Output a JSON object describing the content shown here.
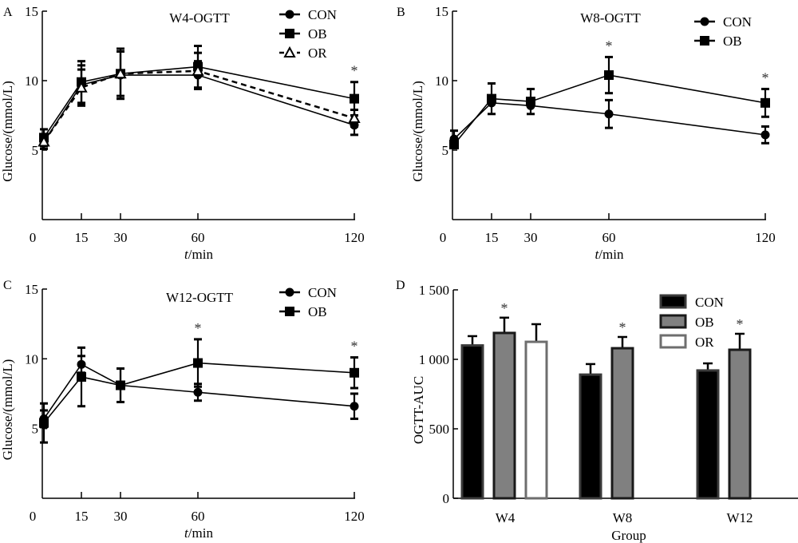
{
  "chart_data": [
    {
      "panel": "A",
      "type": "line",
      "title": "W4-OGTT",
      "xlabel_italic": "t",
      "xlabel_rest": "/min",
      "ylabel": "Glucose/(mmol/L)",
      "x": [
        0,
        15,
        30,
        60,
        120
      ],
      "xticks": [
        "0",
        "15",
        "30",
        "60",
        "120"
      ],
      "yticks": [
        "5",
        "10",
        "15"
      ],
      "ylim": [
        0,
        15
      ],
      "xlim": [
        0,
        120
      ],
      "legend": "top-right",
      "series": [
        {
          "name": "CON",
          "marker": "circle",
          "dash": false,
          "values": [
            5.6,
            9.7,
            10.4,
            10.4,
            6.8
          ],
          "err": [
            0.5,
            1.4,
            1.7,
            1.0,
            0.7
          ]
        },
        {
          "name": "OB",
          "marker": "square",
          "dash": false,
          "values": [
            5.9,
            9.9,
            10.5,
            11.0,
            8.7
          ],
          "err": [
            0.6,
            1.5,
            1.8,
            1.5,
            1.2
          ]
        },
        {
          "name": "OR",
          "marker": "triangle",
          "dash": true,
          "values": [
            5.6,
            9.5,
            10.5,
            10.7,
            7.3
          ],
          "err": [
            0.5,
            1.3,
            1.6,
            1.3,
            0.6
          ]
        }
      ],
      "significance": [
        {
          "x": 120,
          "label": "*"
        }
      ]
    },
    {
      "panel": "B",
      "type": "line",
      "title": "W8-OGTT",
      "xlabel_italic": "t",
      "xlabel_rest": "/min",
      "ylabel": "Glucose/(mmol/L)",
      "x": [
        0,
        15,
        30,
        60,
        120
      ],
      "xticks": [
        "0",
        "15",
        "30",
        "60",
        "120"
      ],
      "yticks": [
        "5",
        "10",
        "15"
      ],
      "ylim": [
        0,
        15
      ],
      "xlim": [
        0,
        120
      ],
      "legend": "top-right",
      "series": [
        {
          "name": "CON",
          "marker": "circle",
          "dash": false,
          "values": [
            5.8,
            8.4,
            8.2,
            7.6,
            6.1
          ],
          "err": [
            0.6,
            0.0,
            0.0,
            1.0,
            0.6
          ]
        },
        {
          "name": "OB",
          "marker": "square",
          "dash": false,
          "values": [
            5.4,
            8.7,
            8.5,
            10.4,
            8.4
          ],
          "err": [
            0.0,
            1.1,
            0.9,
            1.3,
            1.0
          ]
        }
      ],
      "significance": [
        {
          "x": 60,
          "label": "*"
        },
        {
          "x": 120,
          "label": "*"
        }
      ]
    },
    {
      "panel": "C",
      "type": "line",
      "title": "W12-OGTT",
      "xlabel_italic": "t",
      "xlabel_rest": "/min",
      "ylabel": "Glucose/(mmol/L)",
      "x": [
        0,
        15,
        30,
        60,
        120
      ],
      "xticks": [
        "0",
        "15",
        "30",
        "60",
        "120"
      ],
      "yticks": [
        "5",
        "10",
        "15"
      ],
      "ylim": [
        0,
        15
      ],
      "xlim": [
        0,
        120
      ],
      "legend": "top-right",
      "series": [
        {
          "name": "CON",
          "marker": "circle",
          "dash": false,
          "values": [
            5.7,
            9.6,
            8.1,
            7.6,
            6.6
          ],
          "err": [
            0.6,
            0.6,
            1.2,
            0.6,
            0.9
          ]
        },
        {
          "name": "OB",
          "marker": "square",
          "dash": false,
          "values": [
            5.4,
            8.7,
            8.1,
            9.7,
            9.0
          ],
          "err": [
            1.4,
            2.1,
            1.2,
            1.7,
            1.1
          ]
        }
      ],
      "significance": [
        {
          "x": 60,
          "label": "*"
        },
        {
          "x": 120,
          "label": "*"
        }
      ]
    },
    {
      "panel": "D",
      "type": "bar",
      "title": "",
      "xlabel": "Group",
      "ylabel": "OGTT-AUC",
      "categories": [
        "W4",
        "W8",
        "W12"
      ],
      "yticks": [
        "0",
        "500",
        "1 000",
        "1 500"
      ],
      "ylim": [
        0,
        1500
      ],
      "legend": "top-right",
      "series": [
        {
          "name": "CON",
          "fill": "#000000",
          "stroke": "#3a3a3a",
          "values": [
            1100,
            890,
            920
          ],
          "err": [
            67,
            76,
            51
          ]
        },
        {
          "name": "OB",
          "fill": "#808080",
          "stroke": "#1a1a1a",
          "values": [
            1190,
            1080,
            1069
          ],
          "err": [
            110,
            81,
            115
          ]
        },
        {
          "name": "OR",
          "fill": "#ffffff",
          "stroke": "#6e6e6e",
          "values": [
            1126,
            null,
            null
          ],
          "err": [
            127,
            null,
            null
          ]
        }
      ],
      "significance": [
        {
          "category": "W4",
          "series": "OB",
          "label": "*"
        },
        {
          "category": "W8",
          "series": "OB",
          "label": "*"
        },
        {
          "category": "W12",
          "series": "OB",
          "label": "*"
        }
      ]
    }
  ]
}
